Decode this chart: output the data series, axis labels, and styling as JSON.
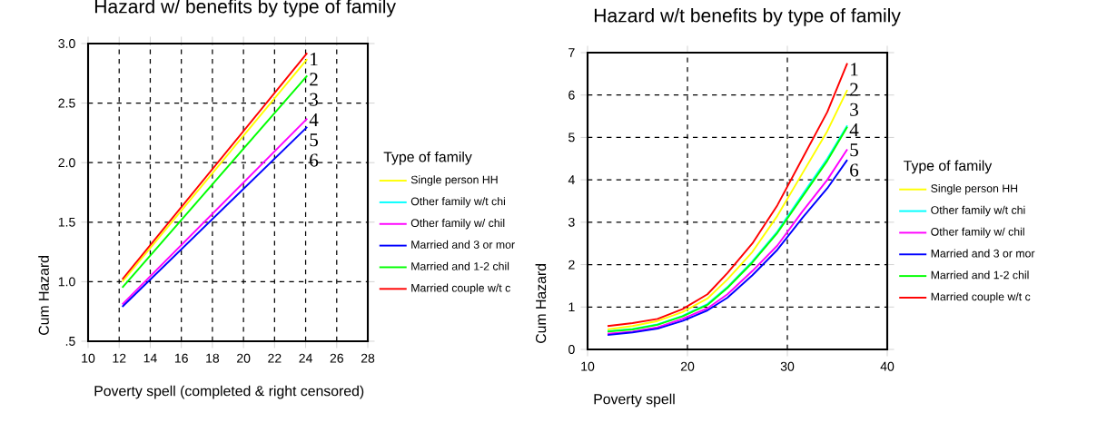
{
  "chart_data": [
    {
      "type": "line",
      "title": "Hazard w/ benefits by type of family",
      "xlabel": "Poverty spell (completed & right censored)",
      "ylabel": "Cum Hazard",
      "legend_title": "Type of family",
      "legend": "right",
      "grid": true,
      "x": [
        12.2,
        24.1
      ],
      "series": [
        {
          "name": "Single person HH",
          "color": "#ffff00",
          "values": [
            1.0,
            2.87
          ]
        },
        {
          "name": "Other family w/t chi",
          "color": "#00ffff",
          "values": [
            null,
            null
          ]
        },
        {
          "name": "Other family w/ chil",
          "color": "#ff00ff",
          "values": [
            0.81,
            2.37
          ]
        },
        {
          "name": "Married and 3 or mor",
          "color": "#0000ff",
          "values": [
            0.79,
            2.3
          ]
        },
        {
          "name": "Married and 1-2 chil",
          "color": "#00ff00",
          "values": [
            0.95,
            2.73
          ]
        },
        {
          "name": "Married couple w/t c",
          "color": "#ff0000",
          "values": [
            1.02,
            2.92
          ]
        }
      ],
      "xlim": [
        10,
        28
      ],
      "xticks": [
        10,
        12,
        14,
        16,
        18,
        20,
        22,
        24,
        26,
        28
      ],
      "ylim": [
        0.5,
        3.0
      ],
      "yticks": [
        {
          "value": 0.5,
          "label": ".5"
        },
        {
          "value": 1.0,
          "label": "1.0"
        },
        {
          "value": 1.5,
          "label": "1.5"
        },
        {
          "value": 2.0,
          "label": "2.0"
        },
        {
          "value": 2.5,
          "label": "2.5"
        },
        {
          "value": 3.0,
          "label": "3.0"
        }
      ],
      "annotations": [
        "1",
        "2",
        "3",
        "4",
        "5",
        "6"
      ]
    },
    {
      "type": "line",
      "title": "Hazard w/t benefits by type of family",
      "xlabel": "Poverty spell",
      "ylabel": "Cum Hazard",
      "legend_title": "Type of family",
      "legend": "right",
      "grid": true,
      "x": [
        12,
        14.5,
        17,
        19.5,
        22,
        24,
        26.5,
        29,
        31.5,
        34,
        36
      ],
      "series": [
        {
          "name": "Single person HH",
          "color": "#ffff00",
          "values": [
            0.47,
            0.55,
            0.67,
            0.88,
            1.2,
            1.65,
            2.3,
            3.15,
            4.15,
            5.15,
            6.12
          ]
        },
        {
          "name": "Other family w/t chi",
          "color": "#00ffff",
          "values": [
            0.43,
            0.48,
            0.59,
            0.79,
            1.07,
            1.47,
            2.08,
            2.78,
            3.65,
            4.5,
            5.28
          ]
        },
        {
          "name": "Other family w/ chil",
          "color": "#ff00ff",
          "values": [
            0.37,
            0.42,
            0.52,
            0.72,
            0.97,
            1.3,
            1.85,
            2.45,
            3.25,
            4.0,
            4.72
          ]
        },
        {
          "name": "Married and 3 or mor",
          "color": "#0000ff",
          "values": [
            0.34,
            0.4,
            0.49,
            0.67,
            0.92,
            1.22,
            1.75,
            2.35,
            3.1,
            3.8,
            4.47
          ]
        },
        {
          "name": "Married and 1-2 chil",
          "color": "#00ff00",
          "values": [
            0.42,
            0.47,
            0.58,
            0.78,
            1.05,
            1.45,
            2.05,
            2.75,
            3.6,
            4.45,
            5.25
          ]
        },
        {
          "name": "Married couple w/t c",
          "color": "#ff0000",
          "values": [
            0.55,
            0.62,
            0.72,
            0.95,
            1.3,
            1.8,
            2.5,
            3.4,
            4.5,
            5.6,
            6.75
          ]
        }
      ],
      "xlim": [
        10,
        40
      ],
      "xticks": [
        10,
        20,
        30,
        40
      ],
      "ylim": [
        0,
        7
      ],
      "yticks": [
        0,
        1,
        2,
        3,
        4,
        5,
        6,
        7
      ],
      "annotations": [
        "1",
        "2",
        "3",
        "4",
        "5",
        "6"
      ]
    }
  ]
}
